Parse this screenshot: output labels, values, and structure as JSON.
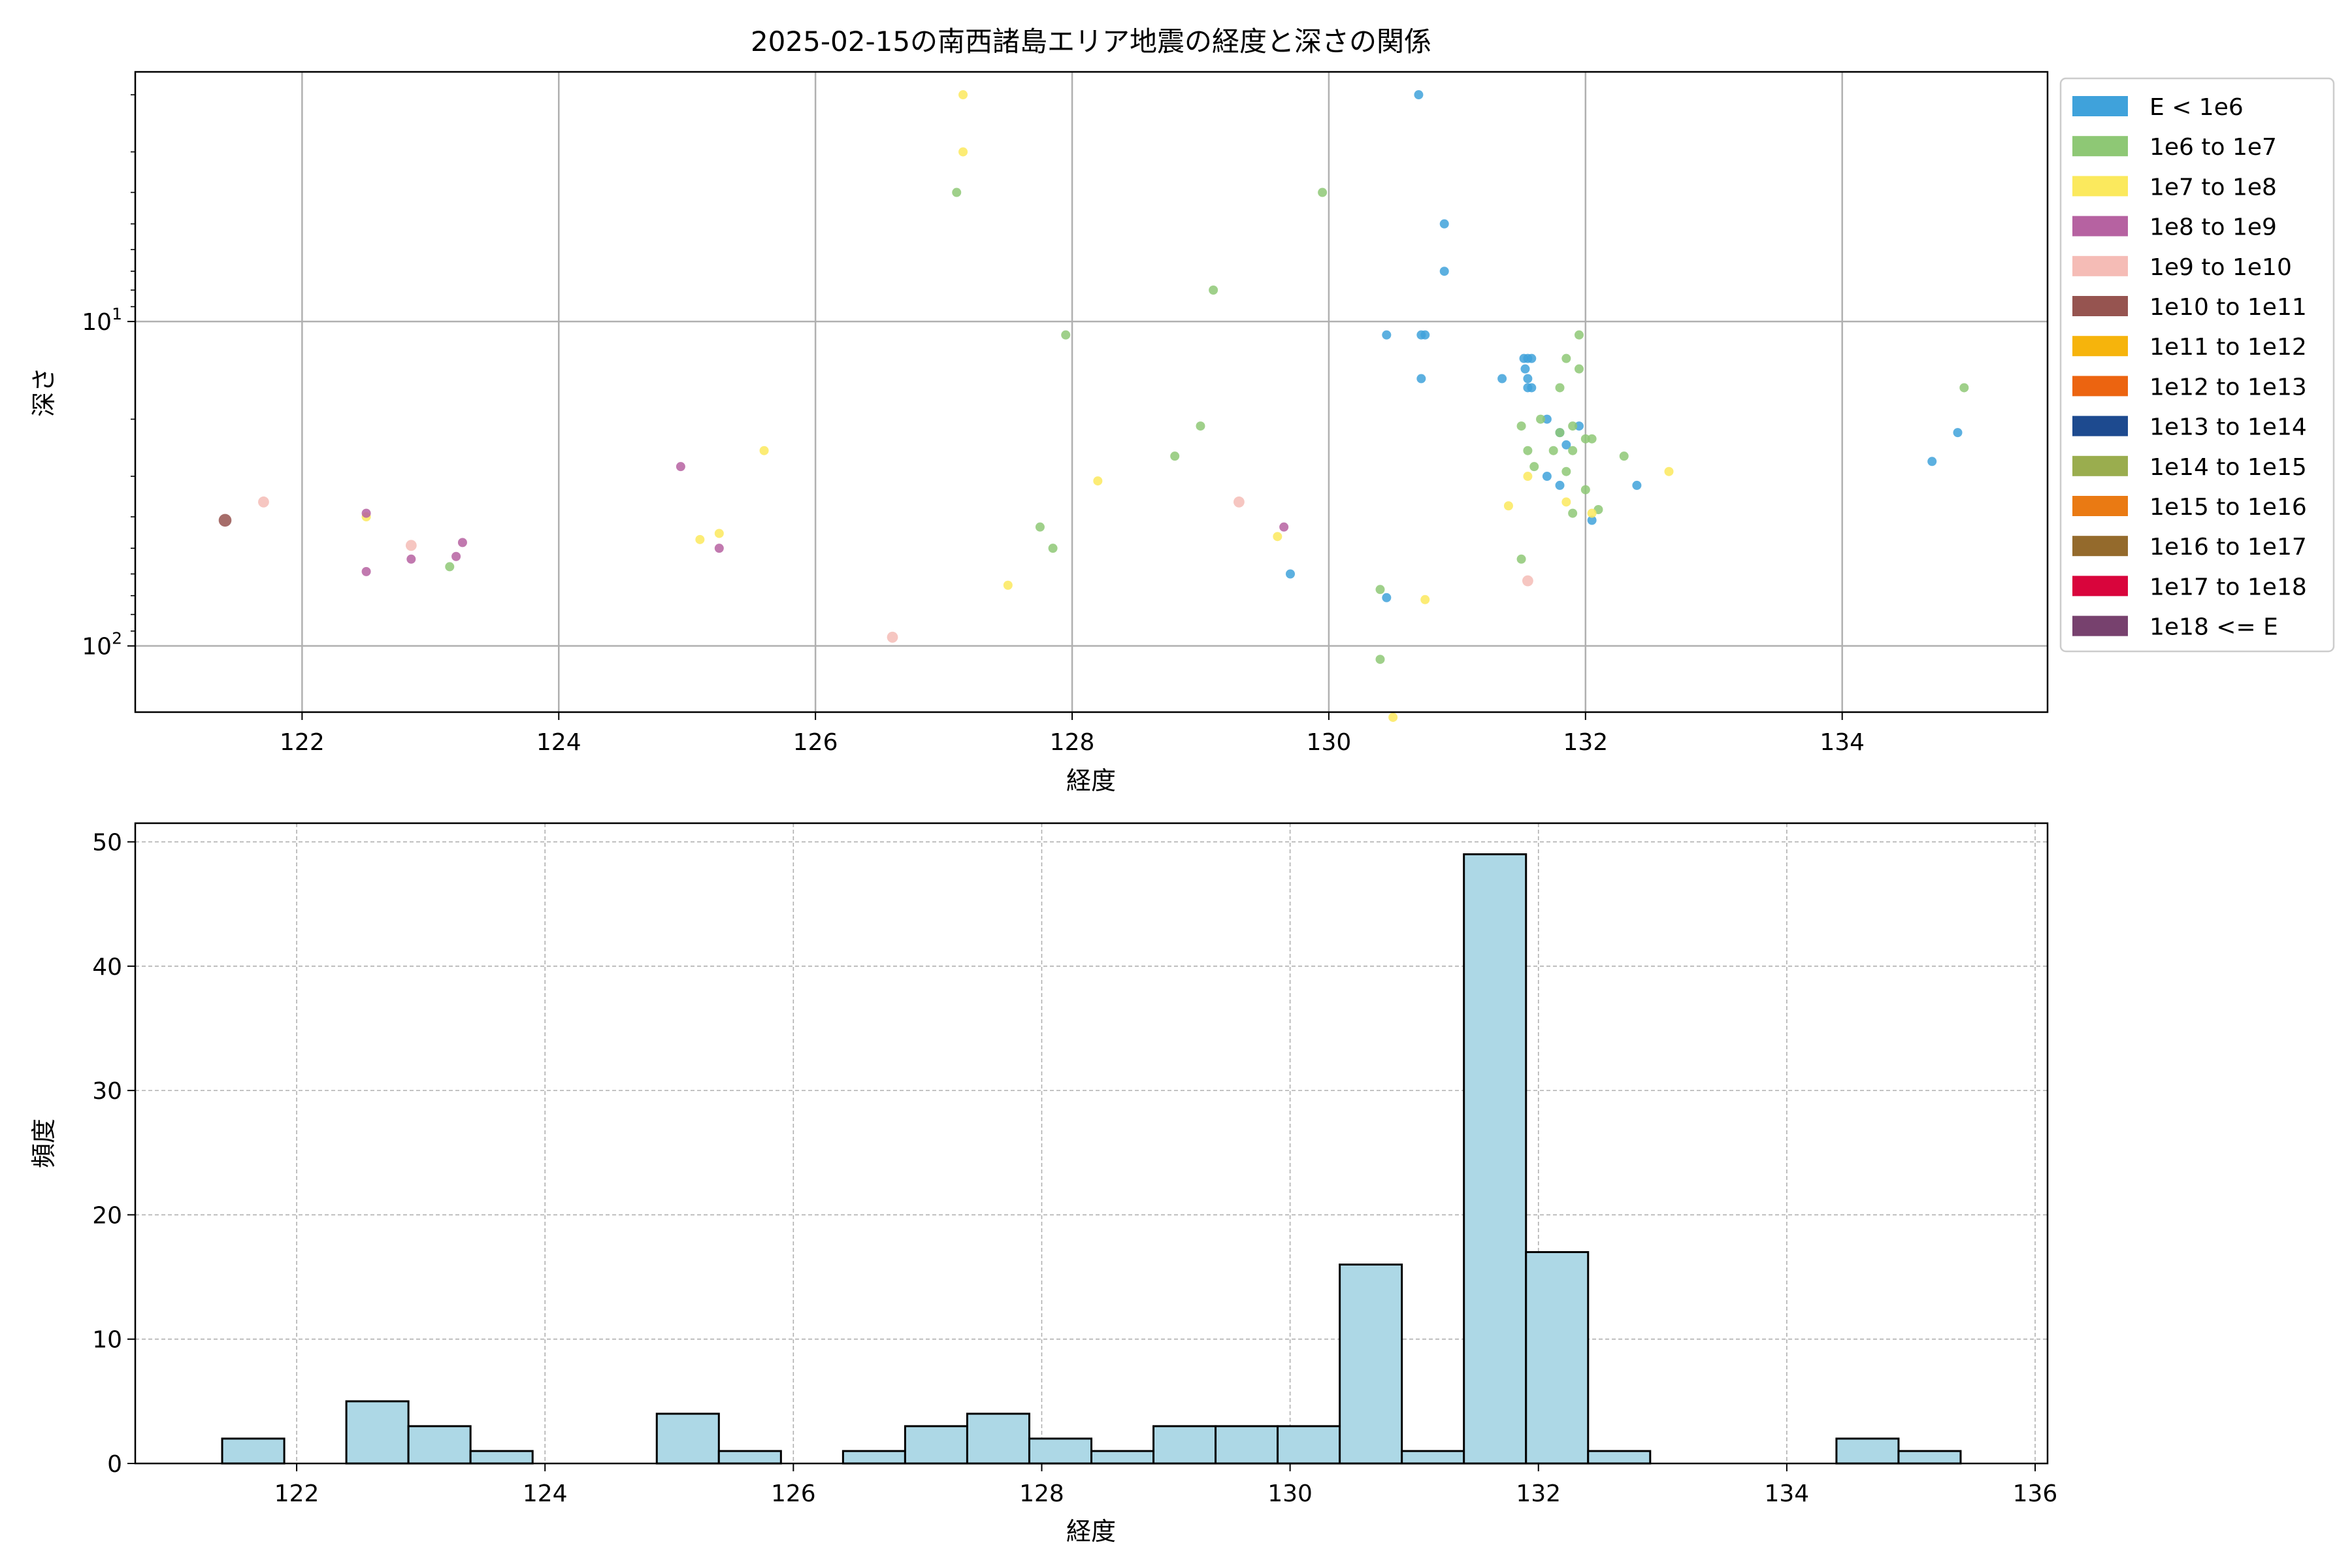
{
  "chart_data": [
    {
      "type": "scatter",
      "title": "2025-02-15の南西諸島エリア地震の経度と深さの関係",
      "xlabel": "経度",
      "ylabel": "深さ",
      "y_scale": "log",
      "y_inverted": true,
      "xlim": [
        120.7,
        135.6
      ],
      "ylim": [
        160,
        1.7
      ],
      "x_ticks": [
        "122",
        "124",
        "126",
        "128",
        "130",
        "132",
        "134"
      ],
      "x_tick_values": [
        122,
        124,
        126,
        128,
        130,
        132,
        134
      ],
      "y_ticks": [
        "10^1",
        "10^2"
      ],
      "y_tick_values": [
        10,
        100
      ],
      "grid": true,
      "legend_position": "outside-right",
      "legend": [
        {
          "label": "E < 1e6",
          "color": "#3fa2db"
        },
        {
          "label": "1e6 to 1e7",
          "color": "#8ec875"
        },
        {
          "label": "1e7 to 1e8",
          "color": "#fbe95d"
        },
        {
          "label": "1e8 to 1e9",
          "color": "#b662a1"
        },
        {
          "label": "1e9 to 1e10",
          "color": "#f5bcb6"
        },
        {
          "label": "1e10 to 1e11",
          "color": "#965450"
        },
        {
          "label": "1e11 to 1e12",
          "color": "#f6b40c"
        },
        {
          "label": "1e12 to 1e13",
          "color": "#ec6410"
        },
        {
          "label": "1e13 to 1e14",
          "color": "#1d4a8f"
        },
        {
          "label": "1e14 to 1e15",
          "color": "#9aad4e"
        },
        {
          "label": "1e15 to 1e16",
          "color": "#ea7a13"
        },
        {
          "label": "1e16 to 1e17",
          "color": "#946a2c"
        },
        {
          "label": "1e17 to 1e18",
          "color": "#d9053c"
        },
        {
          "label": "1e18 <= E",
          "color": "#77416e"
        }
      ],
      "series": [
        {
          "class": 0,
          "color": "#3fa2db",
          "size": 1,
          "points": [
            [
              130.7,
              2
            ],
            [
              130.9,
              5
            ],
            [
              130.9,
              7
            ],
            [
              130.45,
              11
            ],
            [
              130.72,
              11
            ],
            [
              130.75,
              11
            ],
            [
              130.72,
              15
            ],
            [
              131.35,
              15
            ],
            [
              131.52,
              13
            ],
            [
              131.55,
              13
            ],
            [
              131.58,
              13
            ],
            [
              131.53,
              14
            ],
            [
              131.55,
              15
            ],
            [
              131.55,
              16
            ],
            [
              131.58,
              16
            ],
            [
              131.7,
              20
            ],
            [
              131.8,
              22
            ],
            [
              131.95,
              21
            ],
            [
              131.85,
              24
            ],
            [
              131.7,
              30
            ],
            [
              131.8,
              32
            ],
            [
              132.05,
              41
            ],
            [
              132.4,
              32
            ],
            [
              129.7,
              60
            ],
            [
              134.7,
              27
            ],
            [
              134.9,
              22
            ],
            [
              130.45,
              71
            ]
          ]
        },
        {
          "class": 1,
          "color": "#8ec875",
          "size": 1,
          "points": [
            [
              127.1,
              4
            ],
            [
              129.95,
              4
            ],
            [
              129.1,
              8
            ],
            [
              127.95,
              11
            ],
            [
              131.95,
              11
            ],
            [
              131.85,
              13
            ],
            [
              131.95,
              14
            ],
            [
              131.8,
              16
            ],
            [
              129.0,
              21
            ],
            [
              131.65,
              20
            ],
            [
              131.9,
              21
            ],
            [
              131.8,
              22
            ],
            [
              132.0,
              23
            ],
            [
              132.05,
              23
            ],
            [
              131.55,
              25
            ],
            [
              131.75,
              25
            ],
            [
              131.9,
              25
            ],
            [
              128.8,
              26
            ],
            [
              131.6,
              28
            ],
            [
              131.85,
              29
            ],
            [
              132.3,
              26
            ],
            [
              132.0,
              33
            ],
            [
              131.9,
              39
            ],
            [
              132.1,
              38
            ],
            [
              127.75,
              43
            ],
            [
              127.85,
              50
            ],
            [
              131.5,
              54
            ],
            [
              123.15,
              57
            ],
            [
              130.4,
              67
            ],
            [
              130.4,
              110
            ],
            [
              134.95,
              16
            ],
            [
              131.5,
              21
            ]
          ]
        },
        {
          "class": 2,
          "color": "#fbe95d",
          "size": 1,
          "points": [
            [
              127.15,
              2
            ],
            [
              127.15,
              3
            ],
            [
              125.6,
              25
            ],
            [
              132.65,
              29
            ],
            [
              131.55,
              30
            ],
            [
              128.2,
              31
            ],
            [
              131.4,
              37
            ],
            [
              131.85,
              36
            ],
            [
              132.05,
              39
            ],
            [
              122.5,
              40
            ],
            [
              125.1,
              47
            ],
            [
              125.25,
              45
            ],
            [
              129.6,
              46
            ],
            [
              127.5,
              65
            ],
            [
              130.75,
              72
            ],
            [
              130.5,
              166
            ]
          ]
        },
        {
          "class": 3,
          "color": "#b662a1",
          "size": 1,
          "points": [
            [
              124.95,
              28
            ],
            [
              122.5,
              39
            ],
            [
              123.25,
              48
            ],
            [
              125.25,
              50
            ],
            [
              122.85,
              54
            ],
            [
              123.2,
              53
            ],
            [
              122.5,
              59
            ],
            [
              129.65,
              43
            ]
          ]
        },
        {
          "class": 4,
          "color": "#f5bcb6",
          "size": 1.2,
          "points": [
            [
              121.7,
              36
            ],
            [
              122.85,
              49
            ],
            [
              129.3,
              36
            ],
            [
              131.55,
              63
            ],
            [
              126.6,
              94
            ]
          ]
        },
        {
          "class": 5,
          "color": "#965450",
          "size": 1.4,
          "points": [
            [
              121.4,
              41
            ]
          ]
        }
      ]
    },
    {
      "type": "bar",
      "subtype": "histogram",
      "title": "",
      "xlabel": "経度",
      "ylabel": "頻度",
      "xlim": [
        120.7,
        136.1
      ],
      "ylim": [
        0,
        51.5
      ],
      "x_ticks": [
        "122",
        "124",
        "126",
        "128",
        "130",
        "132",
        "134",
        "136"
      ],
      "x_tick_values": [
        122,
        124,
        126,
        128,
        130,
        132,
        134,
        136
      ],
      "y_ticks": [
        "0",
        "10",
        "20",
        "30",
        "40",
        "50"
      ],
      "y_tick_values": [
        0,
        10,
        20,
        30,
        40,
        50
      ],
      "grid": true,
      "bar_color": "#add8e6",
      "bin_start": 121.4,
      "bin_width": 0.5,
      "values": [
        2,
        0,
        5,
        3,
        1,
        0,
        0,
        4,
        1,
        0,
        1,
        3,
        4,
        2,
        1,
        3,
        3,
        3,
        16,
        1,
        49,
        17,
        1,
        0,
        0,
        0,
        2,
        1
      ]
    }
  ]
}
